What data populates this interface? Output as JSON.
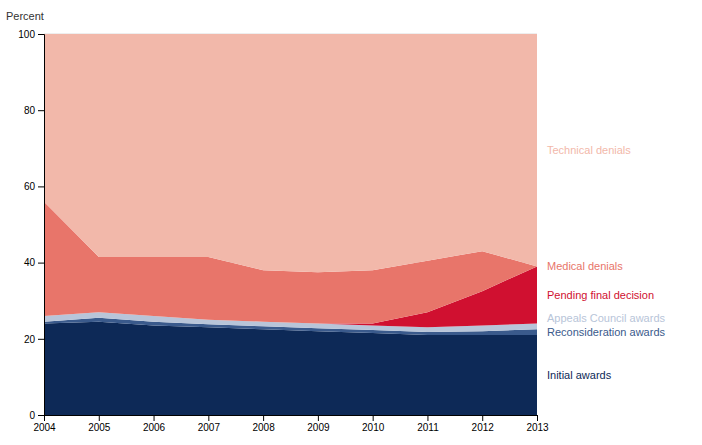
{
  "chart_data": {
    "type": "area",
    "stacked": true,
    "ylabel": "Percent",
    "x": [
      2004,
      2005,
      2006,
      2007,
      2008,
      2009,
      2010,
      2011,
      2012,
      2013
    ],
    "xlim": [
      2004,
      2013
    ],
    "xticks": [
      2004,
      2005,
      2006,
      2007,
      2008,
      2009,
      2010,
      2011,
      2012,
      2013
    ],
    "ylim": [
      0,
      100
    ],
    "yticks": [
      0,
      20,
      40,
      60,
      80,
      100
    ],
    "grid": true,
    "series": [
      {
        "name": "Initial awards",
        "color": "#0d2957",
        "values": [
          24.0,
          24.5,
          23.5,
          23.0,
          22.5,
          22.0,
          21.5,
          21.0,
          21.0,
          21.0
        ]
      },
      {
        "name": "Reconsideration awards",
        "color": "#3a5a8c",
        "values": [
          0.5,
          1.0,
          1.0,
          0.8,
          0.8,
          0.8,
          0.8,
          0.8,
          1.0,
          1.5
        ]
      },
      {
        "name": "Appeals Council awards",
        "color": "#b8c5d9",
        "values": [
          1.5,
          1.5,
          1.5,
          1.2,
          1.2,
          1.2,
          1.2,
          1.2,
          1.5,
          1.5
        ]
      },
      {
        "name": "Pending final decision",
        "color": "#d01030",
        "values": [
          0.0,
          0.0,
          0.0,
          0.0,
          0.0,
          0.0,
          0.5,
          4.0,
          9.0,
          15.0
        ]
      },
      {
        "name": "Medical denials",
        "color": "#e8756a",
        "values": [
          30.0,
          14.5,
          15.5,
          16.5,
          13.5,
          13.5,
          14.0,
          13.5,
          10.5,
          0.0
        ]
      },
      {
        "name": "Technical denials",
        "color": "#f2b8aa",
        "values": [
          44.0,
          58.5,
          58.5,
          58.5,
          62.0,
          62.5,
          62.0,
          59.5,
          57.0,
          61.0
        ]
      }
    ]
  }
}
